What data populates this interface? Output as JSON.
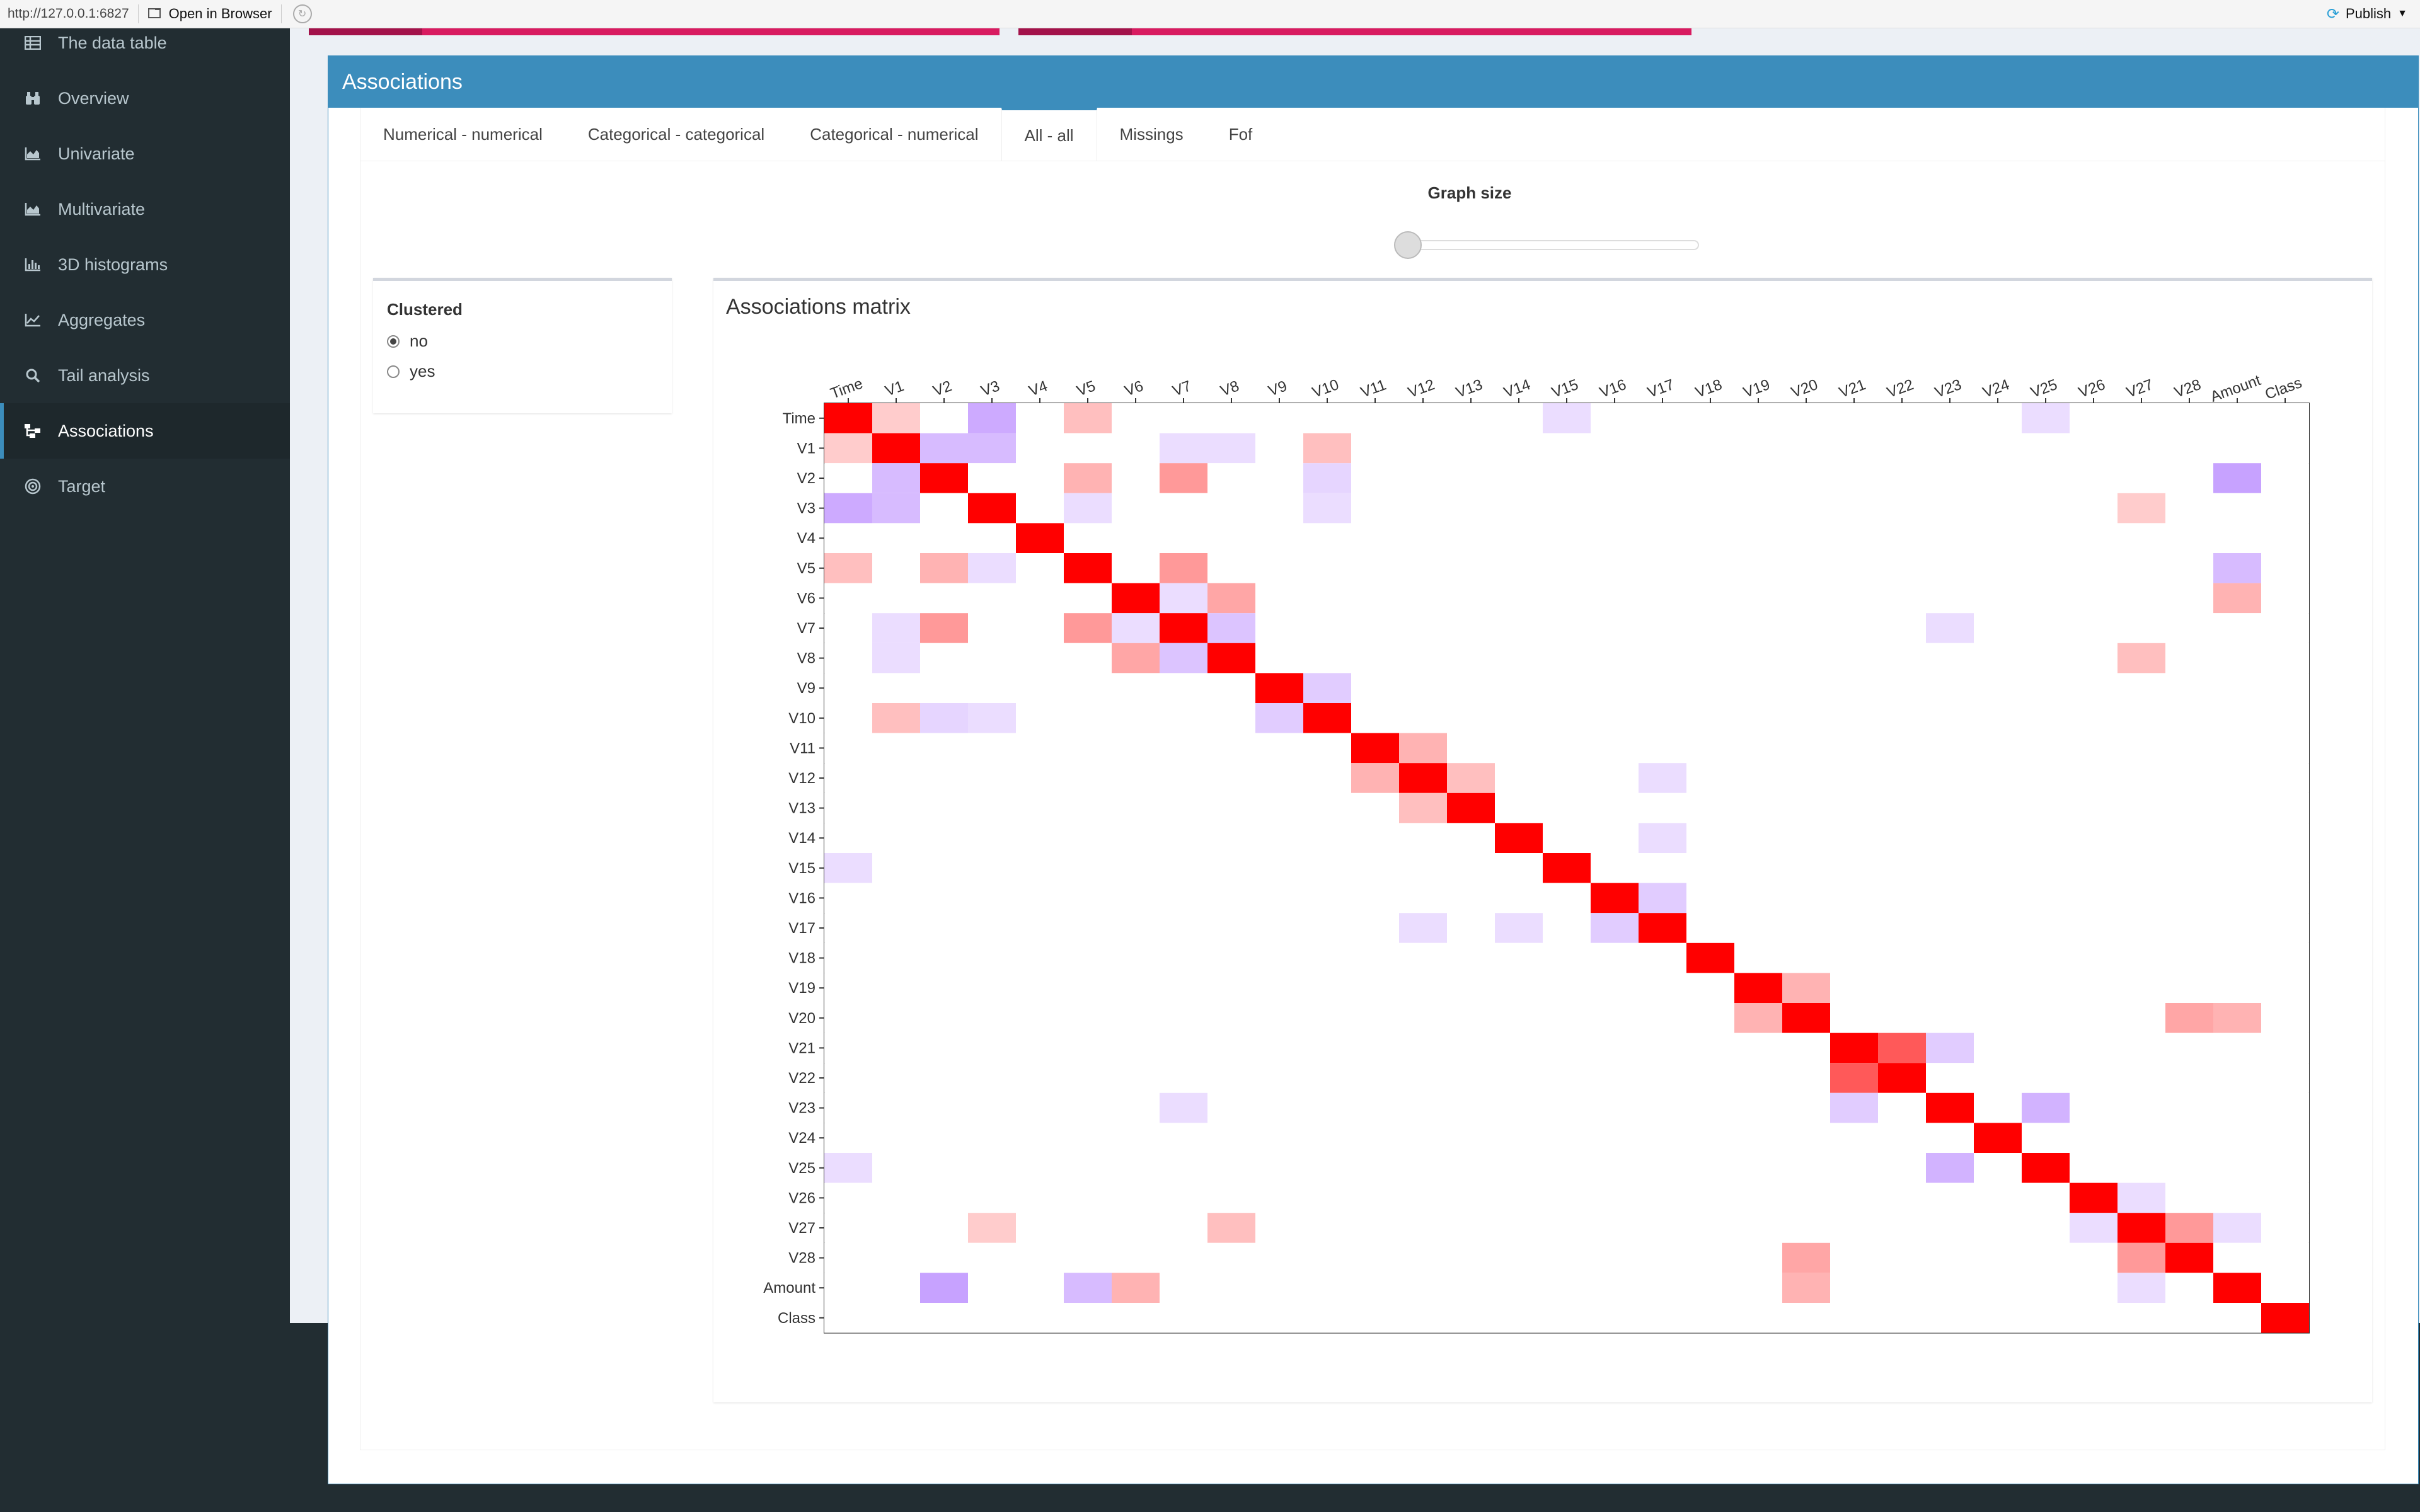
{
  "topbar": {
    "url": "http://127.0.0.1:6827",
    "open_in_browser": "Open in Browser",
    "publish": "Publish"
  },
  "sidebar": {
    "items": [
      {
        "label": "The data table",
        "icon": "table-icon"
      },
      {
        "label": "Overview",
        "icon": "binoculars-icon"
      },
      {
        "label": "Univariate",
        "icon": "area-chart-icon"
      },
      {
        "label": "Multivariate",
        "icon": "area-chart-icon"
      },
      {
        "label": "3D histograms",
        "icon": "bar-chart-icon"
      },
      {
        "label": "Aggregates",
        "icon": "line-chart-icon"
      },
      {
        "label": "Tail analysis",
        "icon": "search-icon"
      },
      {
        "label": "Associations",
        "icon": "sitemap-icon",
        "active": true
      },
      {
        "label": "Target",
        "icon": "bullseye-icon"
      }
    ]
  },
  "main": {
    "box_title": "Associations",
    "tabs": [
      {
        "label": "Numerical - numerical"
      },
      {
        "label": "Categorical - categorical"
      },
      {
        "label": "Categorical - numerical"
      },
      {
        "label": "All - all",
        "active": true
      },
      {
        "label": "Missings"
      },
      {
        "label": "Fof"
      }
    ],
    "graph_size_label": "Graph size",
    "graph_size_value": 0,
    "clustered": {
      "title": "Clustered",
      "options": [
        {
          "label": "no",
          "selected": true
        },
        {
          "label": "yes",
          "selected": false
        }
      ]
    },
    "matrix_title": "Associations matrix"
  },
  "colors": {
    "header_blue": "#3c8dbc",
    "sidebar_bg": "#222d32",
    "pink_bar": "#d81b60",
    "positive": "#ff0000",
    "negative": "#9a55ff"
  },
  "chart_data": {
    "type": "heatmap",
    "title": "",
    "variables": [
      "Time",
      "V1",
      "V2",
      "V3",
      "V4",
      "V5",
      "V6",
      "V7",
      "V8",
      "V9",
      "V10",
      "V11",
      "V12",
      "V13",
      "V14",
      "V15",
      "V16",
      "V17",
      "V18",
      "V19",
      "V20",
      "V21",
      "V22",
      "V23",
      "V24",
      "V25",
      "V26",
      "V27",
      "V28",
      "Amount",
      "Class"
    ],
    "color_scale": {
      "min": -1,
      "mid": 0,
      "max": 1,
      "min_color": "#9a55ff",
      "mid_color": "#ffffff",
      "max_color": "#ff0000"
    },
    "notable_values": [
      {
        "row": "Time",
        "col": "V1",
        "value": 0.2
      },
      {
        "row": "Time",
        "col": "V3",
        "value": -0.5
      },
      {
        "row": "Time",
        "col": "V5",
        "value": 0.25
      },
      {
        "row": "Time",
        "col": "V15",
        "value": -0.2
      },
      {
        "row": "Time",
        "col": "V25",
        "value": -0.2
      },
      {
        "row": "V1",
        "col": "V2",
        "value": -0.4
      },
      {
        "row": "V1",
        "col": "V3",
        "value": -0.4
      },
      {
        "row": "V1",
        "col": "V7",
        "value": -0.2
      },
      {
        "row": "V1",
        "col": "V8",
        "value": -0.2
      },
      {
        "row": "V1",
        "col": "V10",
        "value": 0.25
      },
      {
        "row": "V2",
        "col": "V5",
        "value": 0.3
      },
      {
        "row": "V2",
        "col": "V7",
        "value": 0.4
      },
      {
        "row": "V2",
        "col": "V10",
        "value": -0.25
      },
      {
        "row": "V2",
        "col": "Amount",
        "value": -0.55
      },
      {
        "row": "V3",
        "col": "V5",
        "value": -0.2
      },
      {
        "row": "V3",
        "col": "V10",
        "value": -0.2
      },
      {
        "row": "V3",
        "col": "V27",
        "value": 0.2
      },
      {
        "row": "V5",
        "col": "V7",
        "value": 0.4
      },
      {
        "row": "V5",
        "col": "Amount",
        "value": -0.4
      },
      {
        "row": "V6",
        "col": "V7",
        "value": -0.2
      },
      {
        "row": "V6",
        "col": "V8",
        "value": 0.35
      },
      {
        "row": "V6",
        "col": "Amount",
        "value": 0.3
      },
      {
        "row": "V7",
        "col": "V8",
        "value": -0.35
      },
      {
        "row": "V7",
        "col": "V23",
        "value": -0.2
      },
      {
        "row": "V8",
        "col": "V27",
        "value": 0.25
      },
      {
        "row": "V9",
        "col": "V10",
        "value": -0.3
      },
      {
        "row": "V11",
        "col": "V12",
        "value": 0.3
      },
      {
        "row": "V12",
        "col": "V13",
        "value": 0.25
      },
      {
        "row": "V12",
        "col": "V17",
        "value": -0.2
      },
      {
        "row": "V14",
        "col": "V17",
        "value": -0.2
      },
      {
        "row": "V16",
        "col": "V17",
        "value": -0.3
      },
      {
        "row": "V19",
        "col": "V20",
        "value": 0.3
      },
      {
        "row": "V20",
        "col": "V28",
        "value": 0.35
      },
      {
        "row": "V20",
        "col": "Amount",
        "value": 0.3
      },
      {
        "row": "V21",
        "col": "V22",
        "value": 0.65
      },
      {
        "row": "V21",
        "col": "V23",
        "value": -0.3
      },
      {
        "row": "V23",
        "col": "V25",
        "value": -0.45
      },
      {
        "row": "V26",
        "col": "V27",
        "value": -0.2
      },
      {
        "row": "V27",
        "col": "V28",
        "value": 0.4
      },
      {
        "row": "V27",
        "col": "Amount",
        "value": -0.2
      }
    ],
    "diagonal": 1
  }
}
